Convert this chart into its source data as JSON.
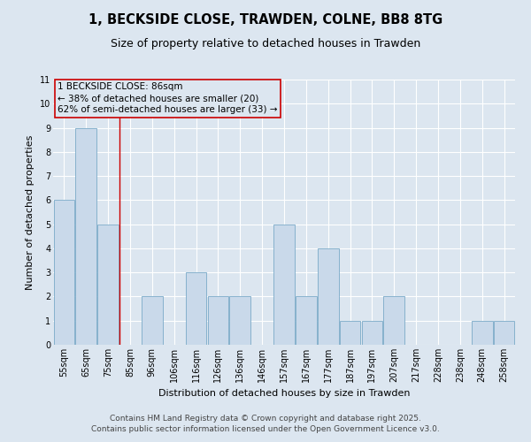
{
  "title": "1, BECKSIDE CLOSE, TRAWDEN, COLNE, BB8 8TG",
  "subtitle": "Size of property relative to detached houses in Trawden",
  "xlabel": "Distribution of detached houses by size in Trawden",
  "ylabel": "Number of detached properties",
  "categories": [
    "55sqm",
    "65sqm",
    "75sqm",
    "85sqm",
    "96sqm",
    "106sqm",
    "116sqm",
    "126sqm",
    "136sqm",
    "146sqm",
    "157sqm",
    "167sqm",
    "177sqm",
    "187sqm",
    "197sqm",
    "207sqm",
    "217sqm",
    "228sqm",
    "238sqm",
    "248sqm",
    "258sqm"
  ],
  "values": [
    6,
    9,
    5,
    0,
    2,
    0,
    3,
    2,
    2,
    0,
    5,
    2,
    4,
    1,
    1,
    2,
    0,
    0,
    0,
    1,
    1
  ],
  "bar_color": "#c9d9ea",
  "bar_edge_color": "#7aaac8",
  "annotation_text": "1 BECKSIDE CLOSE: 86sqm\n← 38% of detached houses are smaller (20)\n62% of semi-detached houses are larger (33) →",
  "vline_color": "#cc0000",
  "box_color": "#cc0000",
  "ylim": [
    0,
    11
  ],
  "yticks": [
    0,
    1,
    2,
    3,
    4,
    5,
    6,
    7,
    8,
    9,
    10,
    11
  ],
  "background_color": "#dce6f0",
  "plot_bg_color": "#dce6f0",
  "grid_color": "#ffffff",
  "footer": "Contains HM Land Registry data © Crown copyright and database right 2025.\nContains public sector information licensed under the Open Government Licence v3.0.",
  "title_fontsize": 10.5,
  "subtitle_fontsize": 9,
  "xlabel_fontsize": 8,
  "ylabel_fontsize": 8,
  "tick_fontsize": 7,
  "annotation_fontsize": 7.5,
  "footer_fontsize": 6.5,
  "vline_x": 2.5
}
